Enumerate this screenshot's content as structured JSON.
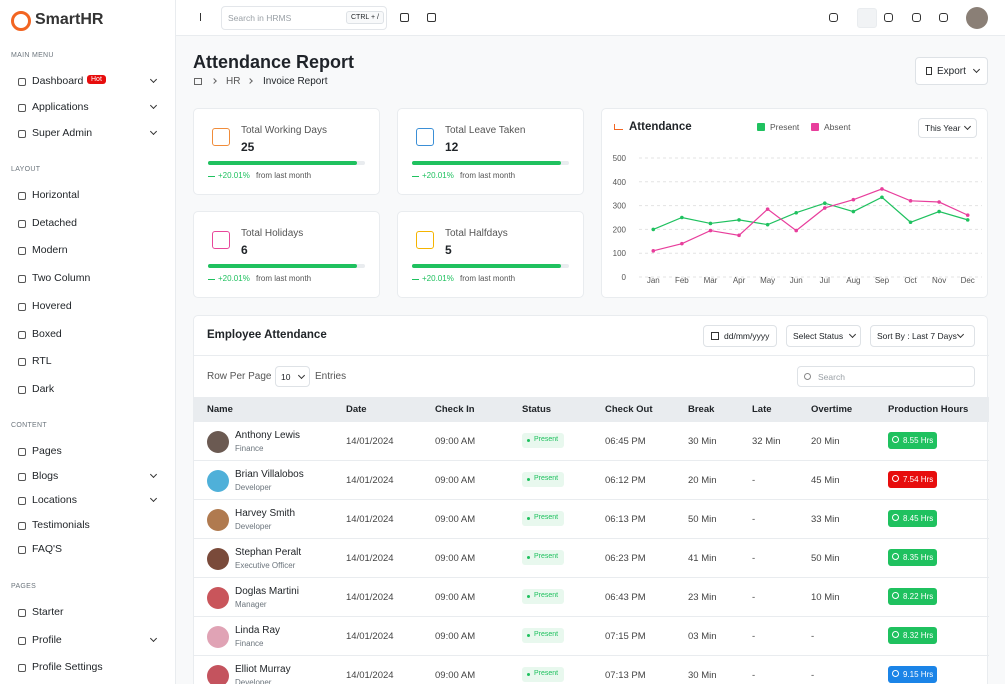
{
  "brand": "SmartHR",
  "sidebar": {
    "sections": [
      {
        "title": "MAIN MENU",
        "items": [
          {
            "label": "Dashboard",
            "badge": "Hot",
            "expandable": true
          },
          {
            "label": "Applications",
            "expandable": true
          },
          {
            "label": "Super Admin",
            "expandable": true
          }
        ]
      },
      {
        "title": "LAYOUT",
        "items": [
          {
            "label": "Horizontal"
          },
          {
            "label": "Detached"
          },
          {
            "label": "Modern"
          },
          {
            "label": "Two Column"
          },
          {
            "label": "Hovered"
          },
          {
            "label": "Boxed"
          },
          {
            "label": "RTL"
          },
          {
            "label": "Dark"
          }
        ]
      },
      {
        "title": "CONTENT",
        "items": [
          {
            "label": "Pages"
          },
          {
            "label": "Blogs",
            "expandable": true
          },
          {
            "label": "Locations",
            "expandable": true
          },
          {
            "label": "Testimonials"
          },
          {
            "label": "FAQ'S"
          }
        ]
      },
      {
        "title": "PAGES",
        "items": [
          {
            "label": "Starter"
          },
          {
            "label": "Profile",
            "expandable": true
          },
          {
            "label": "Profile Settings"
          }
        ]
      }
    ]
  },
  "header": {
    "search_placeholder": "Search in HRMS",
    "shortcut": "CTRL + /"
  },
  "page": {
    "title": "Attendance Report",
    "breadcrumb": [
      "HR",
      "Invoice Report"
    ],
    "export": "Export"
  },
  "stats": [
    {
      "label": "Total Working Days",
      "value": 25,
      "progress": 95,
      "change": "+20.01%",
      "change_text": "from last month",
      "color": "#f08c3a"
    },
    {
      "label": "Total Leave Taken",
      "value": 12,
      "progress": 95,
      "change": "+20.01%",
      "change_text": "from last month",
      "color": "#3b8fd6"
    },
    {
      "label": "Total Holidays",
      "value": 6,
      "progress": 95,
      "change": "+20.01%",
      "change_text": "from last month",
      "color": "#e8479a"
    },
    {
      "label": "Total Halfdays",
      "value": 5,
      "progress": 95,
      "change": "+20.01%",
      "change_text": "from last month",
      "color": "#f5b400"
    }
  ],
  "chart_data": {
    "type": "line",
    "title": "Attendance",
    "period": "This Year",
    "categories": [
      "Jan",
      "Feb",
      "Mar",
      "Apr",
      "May",
      "Jun",
      "Jul",
      "Aug",
      "Sep",
      "Oct",
      "Nov",
      "Dec"
    ],
    "series": [
      {
        "name": "Present",
        "color": "#1fc15f",
        "values": [
          200,
          250,
          225,
          240,
          220,
          270,
          310,
          275,
          335,
          230,
          275,
          240
        ]
      },
      {
        "name": "Absent",
        "color": "#e83e9c",
        "values": [
          110,
          140,
          195,
          175,
          285,
          195,
          290,
          325,
          370,
          320,
          315,
          260
        ]
      }
    ],
    "ylim": [
      0,
      500
    ],
    "yticks": [
      0,
      100,
      200,
      300,
      400,
      500
    ],
    "grid": true
  },
  "table": {
    "title": "Employee Attendance",
    "date_placeholder": "dd/mm/yyyy",
    "status_filter": "Select Status",
    "sort": "Sort By : Last 7 Days",
    "rows_per_page_label": "Row Per Page",
    "rows_per_page": 10,
    "entries_label": "Entries",
    "search_placeholder": "Search",
    "columns": [
      "Name",
      "Date",
      "Check In",
      "Status",
      "Check Out",
      "Break",
      "Late",
      "Overtime",
      "Production Hours"
    ],
    "rows": [
      {
        "name": "Anthony Lewis",
        "role": "Finance",
        "date": "14/01/2024",
        "check_in": "09:00 AM",
        "status": "Present",
        "check_out": "06:45 PM",
        "break": "30 Min",
        "late": "32 Min",
        "overtime": "20 Min",
        "production": "8.55 Hrs",
        "production_color": "#1fc15f"
      },
      {
        "name": "Brian Villalobos",
        "role": "Developer",
        "date": "14/01/2024",
        "check_in": "09:00 AM",
        "status": "Present",
        "check_out": "06:12 PM",
        "break": "20 Min",
        "late": "-",
        "overtime": "45 Min",
        "production": "7.54 Hrs",
        "production_color": "#e70d0d"
      },
      {
        "name": "Harvey Smith",
        "role": "Developer",
        "date": "14/01/2024",
        "check_in": "09:00 AM",
        "status": "Present",
        "check_out": "06:13 PM",
        "break": "50 Min",
        "late": "-",
        "overtime": "33 Min",
        "production": "8.45 Hrs",
        "production_color": "#1fc15f"
      },
      {
        "name": "Stephan Peralt",
        "role": "Executive Officer",
        "date": "14/01/2024",
        "check_in": "09:00 AM",
        "status": "Present",
        "check_out": "06:23 PM",
        "break": "41 Min",
        "late": "-",
        "overtime": "50 Min",
        "production": "8.35 Hrs",
        "production_color": "#1fc15f"
      },
      {
        "name": "Doglas Martini",
        "role": "Manager",
        "date": "14/01/2024",
        "check_in": "09:00 AM",
        "status": "Present",
        "check_out": "06:43 PM",
        "break": "23 Min",
        "late": "-",
        "overtime": "10 Min",
        "production": "8.22 Hrs",
        "production_color": "#1fc15f"
      },
      {
        "name": "Linda Ray",
        "role": "Finance",
        "date": "14/01/2024",
        "check_in": "09:00 AM",
        "status": "Present",
        "check_out": "07:15 PM",
        "break": "03 Min",
        "late": "-",
        "overtime": "-",
        "production": "8.32 Hrs",
        "production_color": "#1fc15f"
      },
      {
        "name": "Elliot Murray",
        "role": "Developer",
        "date": "14/01/2024",
        "check_in": "09:00 AM",
        "status": "Present",
        "check_out": "07:13 PM",
        "break": "30 Min",
        "late": "-",
        "overtime": "-",
        "production": "9.15 Hrs",
        "production_color": "#1b84e7"
      }
    ]
  }
}
